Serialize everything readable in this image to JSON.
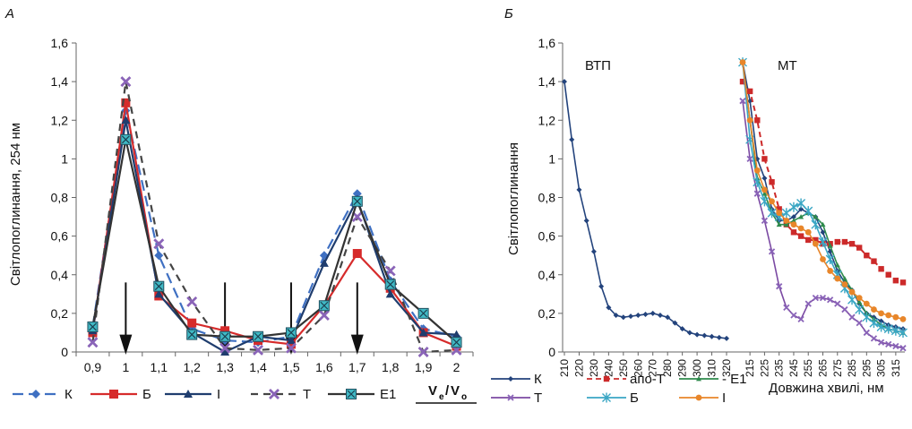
{
  "chart_data": [
    {
      "type": "line",
      "panel_label": "А",
      "ylabel": "Світлопоглинання, 254 нм",
      "xlabel_num": "V",
      "xlabel_num_sub": "e",
      "xlabel_den": "V",
      "xlabel_den_sub": "o",
      "xlabel_slash": "/",
      "ylim": [
        0,
        1.6
      ],
      "yticks": [
        "0",
        "0,2",
        "0,4",
        "0,6",
        "0,8",
        "1",
        "1,2",
        "1,4",
        "1,6"
      ],
      "categories": [
        "0,9",
        "1",
        "1,1",
        "1,2",
        "1,3",
        "1,4",
        "1,5",
        "1,6",
        "1,7",
        "1,8",
        "1,9",
        "2"
      ],
      "arrows_at": [
        1,
        1.3,
        1.5,
        1.7
      ],
      "hbar": [
        1.65,
        1.8,
        1.88
      ],
      "series": [
        {
          "name": "К",
          "color": "#3f70c2",
          "dash": "12,6",
          "marker": "diamond",
          "x": [
            0.9,
            1.0,
            1.1,
            1.2,
            1.3,
            1.4,
            1.5,
            1.6,
            1.7,
            1.8,
            1.9,
            2.0
          ],
          "y": [
            0.13,
            1.25,
            0.5,
            0.12,
            0.06,
            0.05,
            0.08,
            0.5,
            0.82,
            0.37,
            0.12,
            0.08
          ]
        },
        {
          "name": "Б",
          "color": "#d62b2b",
          "dash": "",
          "marker": "square",
          "x": [
            0.9,
            1.0,
            1.1,
            1.2,
            1.3,
            1.4,
            1.5,
            1.6,
            1.7,
            1.8,
            1.9,
            2.0
          ],
          "y": [
            0.1,
            1.29,
            0.29,
            0.15,
            0.11,
            0.06,
            0.04,
            0.24,
            0.51,
            0.33,
            0.1,
            0.03
          ]
        },
        {
          "name": "І",
          "color": "#1f3d6e",
          "dash": "",
          "marker": "triangle",
          "x": [
            0.9,
            1.0,
            1.1,
            1.2,
            1.3,
            1.4,
            1.5,
            1.6,
            1.7,
            1.8,
            1.9,
            2.0
          ],
          "y": [
            0.11,
            1.2,
            0.3,
            0.1,
            0.0,
            0.08,
            0.06,
            0.46,
            0.79,
            0.3,
            0.1,
            0.09
          ]
        },
        {
          "name": "Т",
          "color": "#444444",
          "dash": "8,6",
          "marker": "x",
          "x": [
            0.9,
            1.0,
            1.1,
            1.2,
            1.3,
            1.4,
            1.5,
            1.6,
            1.7,
            1.8,
            1.9,
            2.0
          ],
          "y": [
            0.05,
            1.4,
            0.56,
            0.26,
            0.02,
            0.01,
            0.02,
            0.19,
            0.7,
            0.42,
            0.0,
            0.01
          ]
        },
        {
          "name": "Е1",
          "color": "#333333",
          "dash": "",
          "marker": "square-x",
          "x": [
            0.9,
            1.0,
            1.1,
            1.2,
            1.3,
            1.4,
            1.5,
            1.6,
            1.7,
            1.8,
            1.9,
            2.0
          ],
          "y": [
            0.13,
            1.1,
            0.34,
            0.09,
            0.08,
            0.08,
            0.1,
            0.24,
            0.78,
            0.35,
            0.2,
            0.05
          ]
        }
      ]
    },
    {
      "type": "line",
      "panel_label": "Б",
      "ylabel": "Світлопоглинання",
      "xlabel": "Довжина хвилі, нм",
      "ylim": [
        0,
        1.6
      ],
      "xlim": [
        210,
        320
      ],
      "yticks": [
        "0",
        "0,2",
        "0,4",
        "0,6",
        "0,8",
        "1",
        "1,2",
        "1,4",
        "1,6"
      ],
      "left_categories": [
        "210",
        "215",
        "220",
        "225",
        "230",
        "235",
        "240",
        "245",
        "250",
        "255",
        "260",
        "265",
        "270",
        "275",
        "280",
        "285",
        "290",
        "295",
        "300",
        "305",
        "310",
        "315",
        "320"
      ],
      "left_tick_labels": [
        "210",
        "220",
        "230",
        "240",
        "250",
        "260",
        "270",
        "280",
        "290",
        "300",
        "310",
        "320"
      ],
      "right_tick_labels": [
        "215",
        "225",
        "235",
        "245",
        "255",
        "265",
        "275",
        "285",
        "295",
        "305",
        "315"
      ],
      "annotations": [
        "ВТП",
        "МТ"
      ],
      "series": [
        {
          "name": "К",
          "group": "ВТП",
          "color": "#23437c",
          "dash": "",
          "marker": "diamond-small",
          "x": [
            210,
            215,
            220,
            225,
            230,
            235,
            240,
            245,
            250,
            255,
            260,
            265,
            270,
            275,
            280,
            285,
            290,
            295,
            300,
            305,
            310,
            315,
            320
          ],
          "y": [
            1.4,
            1.1,
            0.84,
            0.68,
            0.52,
            0.34,
            0.23,
            0.19,
            0.18,
            0.185,
            0.19,
            0.195,
            0.2,
            0.19,
            0.18,
            0.15,
            0.12,
            0.1,
            0.09,
            0.085,
            0.08,
            0.075,
            0.07
          ]
        },
        {
          "name": "К",
          "group": "МТ",
          "color": "#23437c",
          "dash": "",
          "marker": "diamond-small",
          "x": [
            210,
            215,
            220,
            225,
            230,
            235,
            240,
            245,
            250,
            255,
            260,
            265,
            270,
            275,
            280,
            285,
            290,
            295,
            300,
            305,
            310,
            315,
            320
          ],
          "y": [
            1.5,
            1.3,
            1.0,
            0.9,
            0.74,
            0.68,
            0.68,
            0.7,
            0.74,
            0.72,
            0.7,
            0.62,
            0.52,
            0.42,
            0.36,
            0.32,
            0.25,
            0.2,
            0.18,
            0.16,
            0.14,
            0.13,
            0.12
          ]
        },
        {
          "name": "апо-Т",
          "group": "МТ",
          "color": "#cc2a2a",
          "dash": "6,4",
          "marker": "square-small",
          "x": [
            210,
            215,
            220,
            225,
            230,
            235,
            240,
            245,
            250,
            255,
            260,
            265,
            270,
            275,
            280,
            285,
            290,
            295,
            300,
            305,
            310,
            315,
            320
          ],
          "y": [
            1.4,
            1.35,
            1.2,
            1.0,
            0.88,
            0.74,
            0.66,
            0.62,
            0.6,
            0.58,
            0.58,
            0.56,
            0.56,
            0.57,
            0.57,
            0.56,
            0.54,
            0.5,
            0.47,
            0.43,
            0.4,
            0.37,
            0.36
          ]
        },
        {
          "name": "Е1",
          "group": "МТ",
          "color": "#2e8a4c",
          "dash": "",
          "marker": "triangle-small",
          "x": [
            210,
            215,
            220,
            225,
            230,
            235,
            240,
            245,
            250,
            255,
            260,
            265,
            270,
            275,
            280,
            285,
            290,
            295,
            300,
            305,
            310,
            315,
            320
          ],
          "y": [
            1.5,
            1.2,
            0.9,
            0.82,
            0.72,
            0.66,
            0.66,
            0.68,
            0.7,
            0.72,
            0.7,
            0.66,
            0.55,
            0.45,
            0.38,
            0.32,
            0.26,
            0.2,
            0.17,
            0.14,
            0.12,
            0.11,
            0.1
          ]
        },
        {
          "name": "Т",
          "group": "МТ",
          "color": "#7b4aa3",
          "dash": "",
          "marker": "x-small",
          "x": [
            210,
            215,
            220,
            225,
            230,
            235,
            240,
            245,
            250,
            255,
            260,
            265,
            270,
            275,
            280,
            285,
            290,
            295,
            300,
            305,
            310,
            315,
            320
          ],
          "y": [
            1.3,
            1.0,
            0.82,
            0.68,
            0.52,
            0.34,
            0.23,
            0.19,
            0.17,
            0.25,
            0.28,
            0.28,
            0.27,
            0.25,
            0.22,
            0.18,
            0.15,
            0.1,
            0.07,
            0.05,
            0.04,
            0.03,
            0.02
          ]
        },
        {
          "name": "Б",
          "group": "МТ",
          "color": "#3aa6c4",
          "dash": "",
          "marker": "star",
          "x": [
            210,
            215,
            220,
            225,
            230,
            235,
            240,
            245,
            250,
            255,
            260,
            265,
            270,
            275,
            280,
            285,
            290,
            295,
            300,
            305,
            310,
            315,
            320
          ],
          "y": [
            1.5,
            1.1,
            0.88,
            0.78,
            0.72,
            0.7,
            0.72,
            0.75,
            0.77,
            0.73,
            0.66,
            0.57,
            0.48,
            0.4,
            0.33,
            0.27,
            0.22,
            0.18,
            0.15,
            0.13,
            0.12,
            0.11,
            0.1
          ]
        },
        {
          "name": "І",
          "group": "МТ",
          "color": "#e8862a",
          "dash": "",
          "marker": "circle-small",
          "x": [
            210,
            215,
            220,
            225,
            230,
            235,
            240,
            245,
            250,
            255,
            260,
            265,
            270,
            275,
            280,
            285,
            290,
            295,
            300,
            305,
            310,
            315,
            320
          ],
          "y": [
            1.5,
            1.2,
            0.94,
            0.84,
            0.78,
            0.72,
            0.68,
            0.66,
            0.64,
            0.62,
            0.56,
            0.48,
            0.42,
            0.38,
            0.35,
            0.31,
            0.28,
            0.25,
            0.22,
            0.2,
            0.19,
            0.18,
            0.17
          ]
        }
      ],
      "legend": [
        {
          "name": "К",
          "color": "#23437c",
          "dash": "",
          "marker": "diamond-small"
        },
        {
          "name": "апо-Т",
          "color": "#cc2a2a",
          "dash": "6,4",
          "marker": "square-small"
        },
        {
          "name": "Е1",
          "color": "#2e8a4c",
          "dash": "",
          "marker": "triangle-small",
          "prefix": "- "
        },
        {
          "name": "Т",
          "color": "#7b4aa3",
          "dash": "",
          "marker": "x-small"
        },
        {
          "name": "Б",
          "color": "#3aa6c4",
          "dash": "",
          "marker": "star"
        },
        {
          "name": "І",
          "color": "#e8862a",
          "dash": "",
          "marker": "circle-small"
        }
      ]
    }
  ]
}
